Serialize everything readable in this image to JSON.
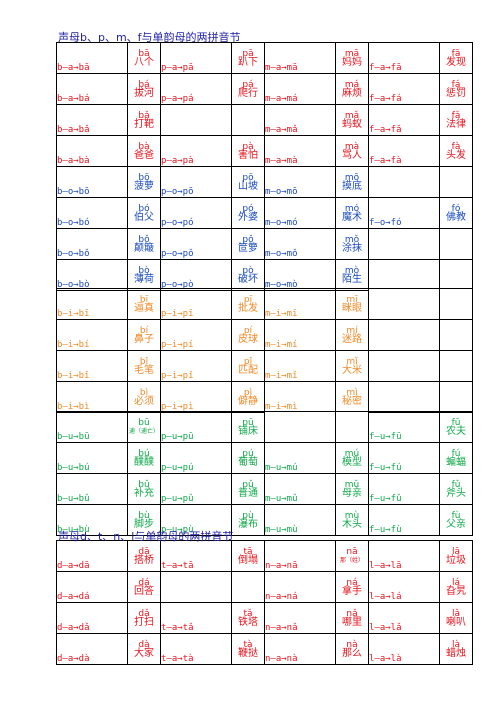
{
  "headings": {
    "bpmf": "声母b、p、m、f与单韵母的两拼音节",
    "dtnl": "声母d、t、n、l与单韵母的两拼音节"
  },
  "colors": {
    "a": "#e8141e",
    "o": "#1a4bbf",
    "i": "#f08a28",
    "u": "#11a94a",
    "d": "#e8141e"
  },
  "sections": [
    {
      "key": "a",
      "rows": [
        [
          [
            "b—a→bā",
            "bā",
            "八个"
          ],
          [
            "p—a→pā",
            "pā",
            "趴下"
          ],
          [
            "m—a→mā",
            "mā",
            "妈妈"
          ],
          [
            "f—a→fā",
            "fā",
            "发现"
          ]
        ],
        [
          [
            "b—a→bá",
            "bá",
            "拔河"
          ],
          [
            "p—a→pá",
            "pá",
            "爬行"
          ],
          [
            "m—a→má",
            "má",
            "麻烦"
          ],
          [
            "f—a→fá",
            "fá",
            "惩罚"
          ]
        ],
        [
          [
            "b—a→bǎ",
            "bǎ",
            "打靶"
          ],
          null,
          [
            "m—a→mǎ",
            "mǎ",
            "蚂蚁"
          ],
          [
            "f—a→fǎ",
            "fǎ",
            "法律"
          ]
        ],
        [
          [
            "b—a→bà",
            "bà",
            "爸爸"
          ],
          [
            "p—a→pà",
            "pà",
            "害怕"
          ],
          [
            "m—a→mà",
            "mà",
            "骂人"
          ],
          [
            "f—a→fà",
            "fà",
            "头发"
          ]
        ]
      ]
    },
    {
      "key": "o",
      "rows": [
        [
          [
            "b—o→bō",
            "bō",
            "菠萝"
          ],
          [
            "p—o→pō",
            "pō",
            "山坡"
          ],
          [
            "m—o→mō",
            "mō",
            "摸底"
          ],
          null
        ],
        [
          [
            "b—o→bó",
            "bó",
            "伯父"
          ],
          [
            "p—o→pó",
            "pó",
            "外婆"
          ],
          [
            "m—o→mó",
            "mó",
            "魔术"
          ],
          [
            "f—o→fó",
            "fó",
            "佛教"
          ]
        ],
        [
          [
            "b—o→bǒ",
            "bǒ",
            "颠簸"
          ],
          [
            "p—o→pǒ",
            "pǒ",
            "笸箩"
          ],
          [
            "m—o→mǒ",
            "mǒ",
            "涂抹"
          ],
          null
        ],
        [
          [
            "b—o→bò",
            "bò",
            "薄荷"
          ],
          [
            "p—o→pò",
            "pò",
            "破坏"
          ],
          [
            "m—o→mò",
            "mò",
            "陌生"
          ],
          null
        ]
      ]
    },
    {
      "key": "i",
      "rows": [
        [
          [
            "b—i→bī",
            "bī",
            "逼真"
          ],
          [
            "p—i→pī",
            "pī",
            "批发"
          ],
          [
            "m—i→mī",
            "mī",
            "眯眼"
          ],
          null
        ],
        [
          [
            "b—i→bí",
            "bí",
            "鼻子"
          ],
          [
            "p—i→pí",
            "pí",
            "皮球"
          ],
          [
            "m—i→mí",
            "mí",
            "迷路"
          ],
          null
        ],
        [
          [
            "b—i→bǐ",
            "bǐ",
            "毛笔"
          ],
          [
            "p—i→pǐ",
            "pǐ",
            "匹配"
          ],
          [
            "m—i→mǐ",
            "mǐ",
            "大米"
          ],
          null
        ],
        [
          [
            "b—i→bì",
            "bì",
            "必须"
          ],
          [
            "p—i→pì",
            "pì",
            "僻静"
          ],
          [
            "m—i→mì",
            "mì",
            "秘密"
          ],
          null
        ]
      ]
    },
    {
      "key": "u",
      "rows": [
        [
          [
            "b—u→bū",
            "bū",
            "逋（逋亡）"
          ],
          [
            "p—u→pū",
            "pū",
            "铺床"
          ],
          null,
          [
            "f—u→fū",
            "fū",
            "农夫"
          ]
        ],
        [
          [
            "b—u→bú",
            "bú",
            "醭醭"
          ],
          [
            "p—u→pú",
            "pú",
            "葡萄"
          ],
          [
            "m—u→mú",
            "mú",
            "模型"
          ],
          [
            "f—u→fú",
            "fú",
            "蝙蝠"
          ]
        ],
        [
          [
            "b—u→bǔ",
            "bǔ",
            "补充"
          ],
          [
            "p—u→pǔ",
            "pǔ",
            "普通"
          ],
          [
            "m—u→mǔ",
            "mǔ",
            "母亲"
          ],
          [
            "f—u→fǔ",
            "fǔ",
            "斧头"
          ]
        ],
        [
          [
            "b—u→bù",
            "bù",
            "脚步"
          ],
          [
            "p—u→pù",
            "pù",
            "瀑布"
          ],
          [
            "m—u→mù",
            "mù",
            "木头"
          ],
          [
            "f—u→fù",
            "fù",
            "父亲"
          ]
        ]
      ]
    },
    {
      "key": "d",
      "rows": [
        [
          [
            "d—a→dā",
            "dā",
            "搭桥"
          ],
          [
            "t—a→tā",
            "tā",
            "倒塌"
          ],
          [
            "n—a→nā",
            "nā",
            "那（姓）"
          ],
          [
            "l—a→lā",
            "lā",
            "垃圾"
          ]
        ],
        [
          [
            "d—a→dá",
            "dá",
            "回答"
          ],
          null,
          [
            "n—a→ná",
            "ná",
            "拿手"
          ],
          [
            "l—a→lá",
            "lá",
            "旮旯"
          ]
        ],
        [
          [
            "d—a→dǎ",
            "dǎ",
            "打扫"
          ],
          [
            "t—a→tǎ",
            "tǎ",
            "铁塔"
          ],
          [
            "n—a→nǎ",
            "nǎ",
            "哪里"
          ],
          [
            "l—a→lǎ",
            "lǎ",
            "喇叭"
          ]
        ],
        [
          [
            "d—a→dà",
            "dà",
            "大家"
          ],
          [
            "t—a→tà",
            "tà",
            "鞭挞"
          ],
          [
            "n—a→nà",
            "nà",
            "那么"
          ],
          [
            "l—a→là",
            "là",
            "蜡烛"
          ]
        ]
      ]
    }
  ]
}
